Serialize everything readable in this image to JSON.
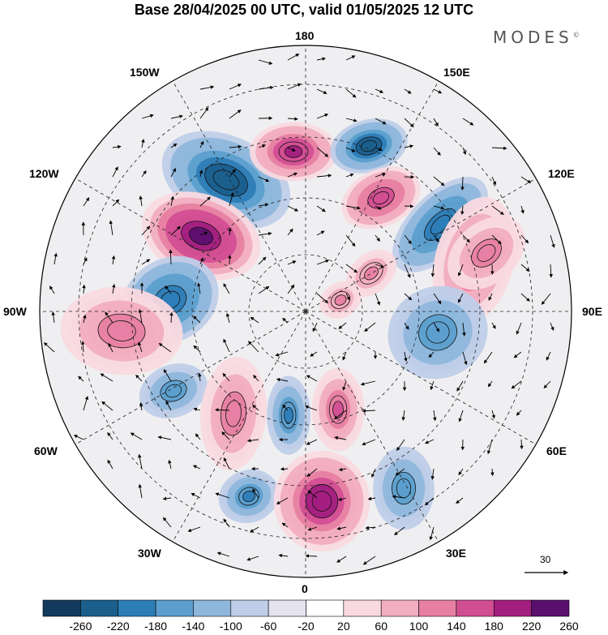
{
  "title": "Base 28/04/2025 00 UTC, valid 01/05/2025 12 UTC",
  "brand": "MODES",
  "brand_mark": "©",
  "longitude_labels": {
    "top": "180",
    "top_left": "150W",
    "top_right": "150E",
    "upper_left": "120W",
    "upper_right": "120E",
    "left": "90W",
    "right": "90E",
    "lower_left": "60W",
    "lower_right": "60E",
    "bottom_left": "30W",
    "bottom_right": "30E",
    "bottom": "0"
  },
  "reference_vector": {
    "label": "30"
  },
  "colorbar": {
    "ticks": [
      "-260",
      "-220",
      "-180",
      "-140",
      "-100",
      "-60",
      "-20",
      "20",
      "60",
      "100",
      "140",
      "180",
      "220",
      "260"
    ],
    "colors": [
      "#133a5c",
      "#1b5f8d",
      "#2d7db7",
      "#5c9fce",
      "#8fb7dc",
      "#bfcde8",
      "#e6e3f1",
      "#ffffff",
      "#f9d9e0",
      "#f1aec0",
      "#e77fa3",
      "#d24e92",
      "#a21f80",
      "#5a0f6e"
    ]
  },
  "anomalies": [
    {
      "sign": "negative",
      "level": 9
    },
    {
      "sign": "positive",
      "level": 10
    },
    {
      "sign": "negative",
      "level": 7
    },
    {
      "sign": "positive",
      "level": 8
    },
    {
      "sign": "negative",
      "level": 9
    },
    {
      "sign": "positive",
      "level": 7
    },
    {
      "sign": "positive",
      "level": 6
    },
    {
      "sign": "negative",
      "level": 5
    },
    {
      "sign": "positive",
      "level": 5
    },
    {
      "sign": "negative",
      "level": 6
    },
    {
      "sign": "positive",
      "level": 6
    },
    {
      "sign": "negative",
      "level": 7
    },
    {
      "sign": "positive",
      "level": 5
    },
    {
      "sign": "negative",
      "level": 6
    },
    {
      "sign": "positive",
      "level": 9
    },
    {
      "sign": "negative",
      "level": 5
    },
    {
      "sign": "positive",
      "level": 4
    },
    {
      "sign": "negative",
      "level": 5
    },
    {
      "sign": "positive",
      "level": 5
    },
    {
      "sign": "positive",
      "level": 4
    }
  ]
}
